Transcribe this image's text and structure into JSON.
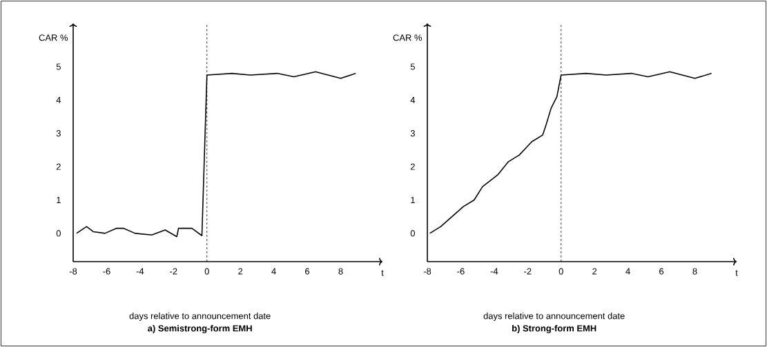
{
  "chart_data": [
    {
      "type": "line",
      "title": "a) Semistrong-form EMH",
      "xlabel": "days relative to announcement date",
      "ylabel": "CAR %",
      "annotations": [
        "t"
      ],
      "color": "#000000",
      "x": [
        -7.8,
        -7.2,
        -6.8,
        -6.1,
        -5.4,
        -5.0,
        -4.3,
        -3.3,
        -2.5,
        -1.8,
        -1.7,
        -0.9,
        -0.3,
        0.0,
        1.5,
        2.6,
        4.2,
        5.2,
        6.5,
        8.0,
        8.9
      ],
      "values": [
        0.0,
        0.2,
        0.05,
        0.0,
        0.15,
        0.15,
        0.0,
        -0.05,
        0.1,
        -0.1,
        0.15,
        0.15,
        -0.07,
        4.75,
        4.8,
        4.75,
        4.8,
        4.7,
        4.85,
        4.65,
        4.8
      ],
      "xlim": [
        -8,
        10.5
      ],
      "ylim": [
        -0.85,
        6.3
      ],
      "xticks": [
        -8,
        -6,
        -4,
        -2,
        0,
        2,
        4,
        6,
        8
      ],
      "yticks": [
        0,
        1,
        2,
        3,
        4,
        5
      ],
      "ref_lines": [
        {
          "axis": "x",
          "value": 0,
          "line_style": "dashed"
        }
      ]
    },
    {
      "type": "line",
      "title": "b) Strong-form EMH",
      "xlabel": "days relative to announcement date",
      "ylabel": "CAR %",
      "annotations": [
        "t"
      ],
      "color": "#000000",
      "x": [
        -7.85,
        -7.2,
        -5.85,
        -5.2,
        -4.7,
        -3.8,
        -3.15,
        -2.5,
        -1.75,
        -1.1,
        -0.9,
        -0.6,
        -0.25,
        0.0,
        1.5,
        2.7,
        4.2,
        5.2,
        6.5,
        8.0,
        9.0
      ],
      "values": [
        0.0,
        0.2,
        0.8,
        1.0,
        1.4,
        1.75,
        2.15,
        2.35,
        2.75,
        2.95,
        3.25,
        3.75,
        4.1,
        4.75,
        4.8,
        4.75,
        4.8,
        4.7,
        4.85,
        4.65,
        4.8
      ],
      "xlim": [
        -8,
        10.5
      ],
      "ylim": [
        -0.85,
        6.3
      ],
      "xticks": [
        -8,
        -6,
        -4,
        -2,
        0,
        2,
        4,
        6,
        8
      ],
      "yticks": [
        0,
        1,
        2,
        3,
        4,
        5
      ],
      "ref_lines": [
        {
          "axis": "x",
          "value": 0,
          "line_style": "dashed"
        }
      ]
    }
  ]
}
